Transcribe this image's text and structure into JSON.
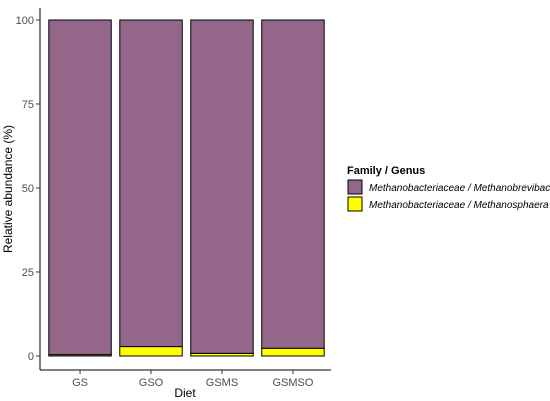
{
  "chart_data": {
    "type": "bar",
    "stacked": true,
    "categories": [
      "GS",
      "GSO",
      "GSMS",
      "GSMSO"
    ],
    "series": [
      {
        "name": "Methanobacteriaceae / Methanosphaera",
        "color": "#FFFF00",
        "values": [
          0.4,
          2.8,
          0.8,
          2.3
        ]
      },
      {
        "name": "Methanobacteriaceae / Methanobrevibacter",
        "color": "#946689",
        "values": [
          99.6,
          97.2,
          99.2,
          97.7
        ]
      }
    ],
    "xlabel": "Diet",
    "ylabel": "Relative abundance (%)",
    "ylim": [
      0,
      100
    ],
    "yticks": [
      0,
      25,
      50,
      75,
      100
    ],
    "legend": {
      "title": "Family / Genus",
      "position": "right",
      "entries": [
        {
          "label": "Methanobacteriaceae / Methanobrevibacter",
          "color": "#946689"
        },
        {
          "label": "Methanobacteriaceae / Methanosphaera",
          "color": "#FFFF00"
        }
      ]
    },
    "grid": false
  }
}
